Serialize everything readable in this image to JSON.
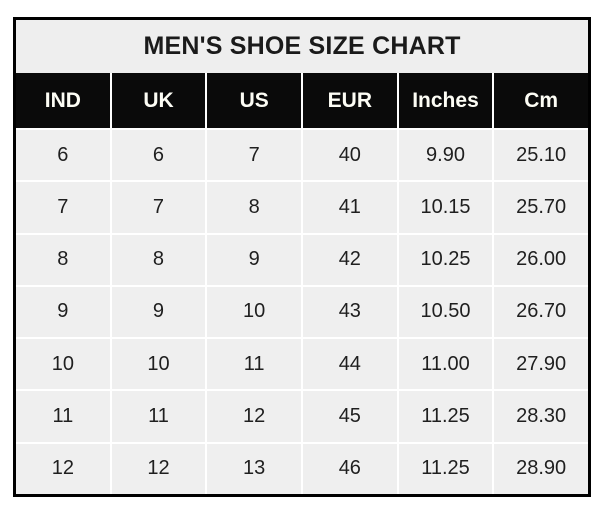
{
  "chart_data": {
    "type": "table",
    "title": "MEN'S SHOE SIZE CHART",
    "columns": [
      "IND",
      "UK",
      "US",
      "EUR",
      "Inches",
      "Cm"
    ],
    "rows": [
      [
        "6",
        "6",
        "7",
        "40",
        "9.90",
        "25.10"
      ],
      [
        "7",
        "7",
        "8",
        "41",
        "10.15",
        "25.70"
      ],
      [
        "8",
        "8",
        "9",
        "42",
        "10.25",
        "26.00"
      ],
      [
        "9",
        "9",
        "10",
        "43",
        "10.50",
        "26.70"
      ],
      [
        "10",
        "10",
        "11",
        "44",
        "11.00",
        "27.90"
      ],
      [
        "11",
        "11",
        "12",
        "45",
        "11.25",
        "28.30"
      ],
      [
        "12",
        "12",
        "13",
        "46",
        "11.25",
        "28.90"
      ]
    ],
    "layout": {
      "legend": "none",
      "grid": "on",
      "column_count": 6,
      "row_count": 7
    }
  },
  "colors": {
    "page_bg": "#ffffff",
    "outer_border": "#000000",
    "title_bg": "#eeeeee",
    "title_text": "#1a1a1a",
    "header_bg": "#0a0a0a",
    "header_text": "#fdfdf5",
    "cell_bg": "#efefef",
    "cell_text": "#1f1f1f",
    "grid_line": "#ffffff"
  }
}
